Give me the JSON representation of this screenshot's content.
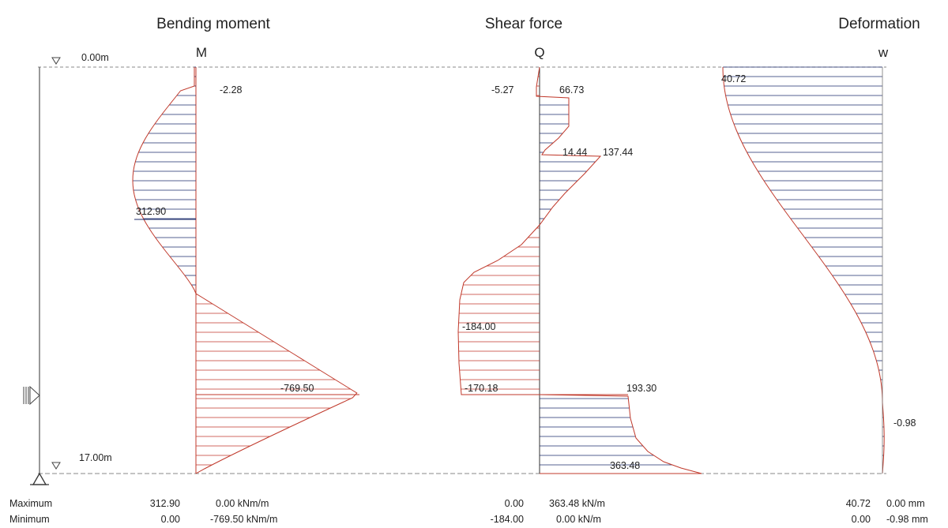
{
  "titles": {
    "moment": "Bending moment",
    "shear": "Shear force",
    "deformation": "Deformation"
  },
  "symbols": {
    "moment": "M",
    "shear": "Q",
    "deformation": "w"
  },
  "levels": {
    "top": "0.00m",
    "bottom": "17.00m"
  },
  "colors": {
    "positive": "#1c2b6b",
    "negative": "#c0392b",
    "axis": "#333333",
    "dashed": "#888888"
  },
  "moment": {
    "labels": {
      "top": "-2.28",
      "max": "312.90",
      "min": "-769.50"
    },
    "summary": {
      "max_left": "312.90",
      "max_right": "0.00 kNm/m",
      "min_left": "0.00",
      "min_right": "-769.50 kNm/m"
    }
  },
  "shear": {
    "labels": {
      "top_left": "-5.27",
      "top_right": "66.73",
      "step_left": "14.44",
      "step_right": "137.44",
      "mid": "-184.00",
      "low_left": "-170.18",
      "low_right": "193.30",
      "bottom": "363.48"
    },
    "summary": {
      "max_left": "0.00",
      "max_right": "363.48 kN/m",
      "min_left": "-184.00",
      "min_right": "0.00 kN/m"
    }
  },
  "deformation": {
    "labels": {
      "top": "40.72",
      "bottom": "-0.98"
    },
    "summary": {
      "max_left": "40.72",
      "max_right": "0.00 mm",
      "min_left": "0.00",
      "min_right": "-0.98 mm"
    }
  },
  "summary_labels": {
    "maximum": "Maximum",
    "minimum": "Minimum"
  }
}
